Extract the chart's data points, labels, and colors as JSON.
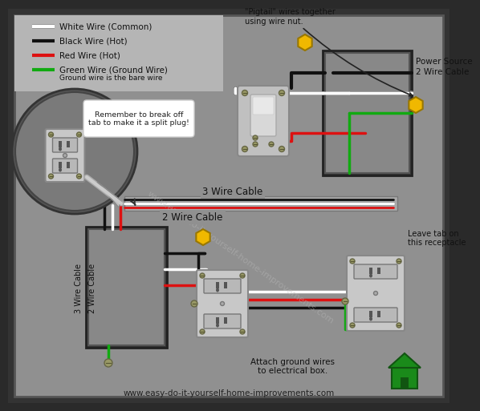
{
  "bg_outer": "#2a2a2a",
  "bg_main": "#888888",
  "bg_light": "#aaaaaa",
  "bg_legend": "#b0b0b0",
  "wire_white": "#ffffff",
  "wire_black": "#111111",
  "wire_red": "#dd1111",
  "wire_green": "#11aa11",
  "wire_nut_color": "#f0b800",
  "outlet_body": "#cccccc",
  "outlet_dark": "#999999",
  "switch_body": "#cccccc",
  "box_color": "#888888",
  "box_edge": "#444444",
  "footer": "www.easy-do-it-yourself-home-improvements.com",
  "legend_items": [
    {
      "color": "#ffffff",
      "label": "White Wire (Common)"
    },
    {
      "color": "#111111",
      "label": "Black Wire (Hot)"
    },
    {
      "color": "#dd1111",
      "label": "Red Wire (Hot)"
    },
    {
      "color": "#11aa11",
      "label": "Green Wire (Ground Wire)"
    }
  ],
  "legend_sub": "Ground wire is the bare wire",
  "pigtail_text": "\"Pigtail\" wires together\nusing wire nut.",
  "power_source_text": "Power Source\n2 Wire Cable",
  "leave_tab_text": "Leave tab on\nthis receptacle",
  "cable_3wire_text": "3 Wire Cable",
  "cable_2wire_text": "2 Wire Cable",
  "left_3wire_text": "3 Wire Cable",
  "left_2wire_text": "2 Wire Cable",
  "attach_ground_text": "Attach ground wires\nto electrical box.",
  "break_tab_text": "Remember to break off\ntab to make it a split plug!",
  "watermark": "www.easy-do-it-yourself-home-improvements.com"
}
